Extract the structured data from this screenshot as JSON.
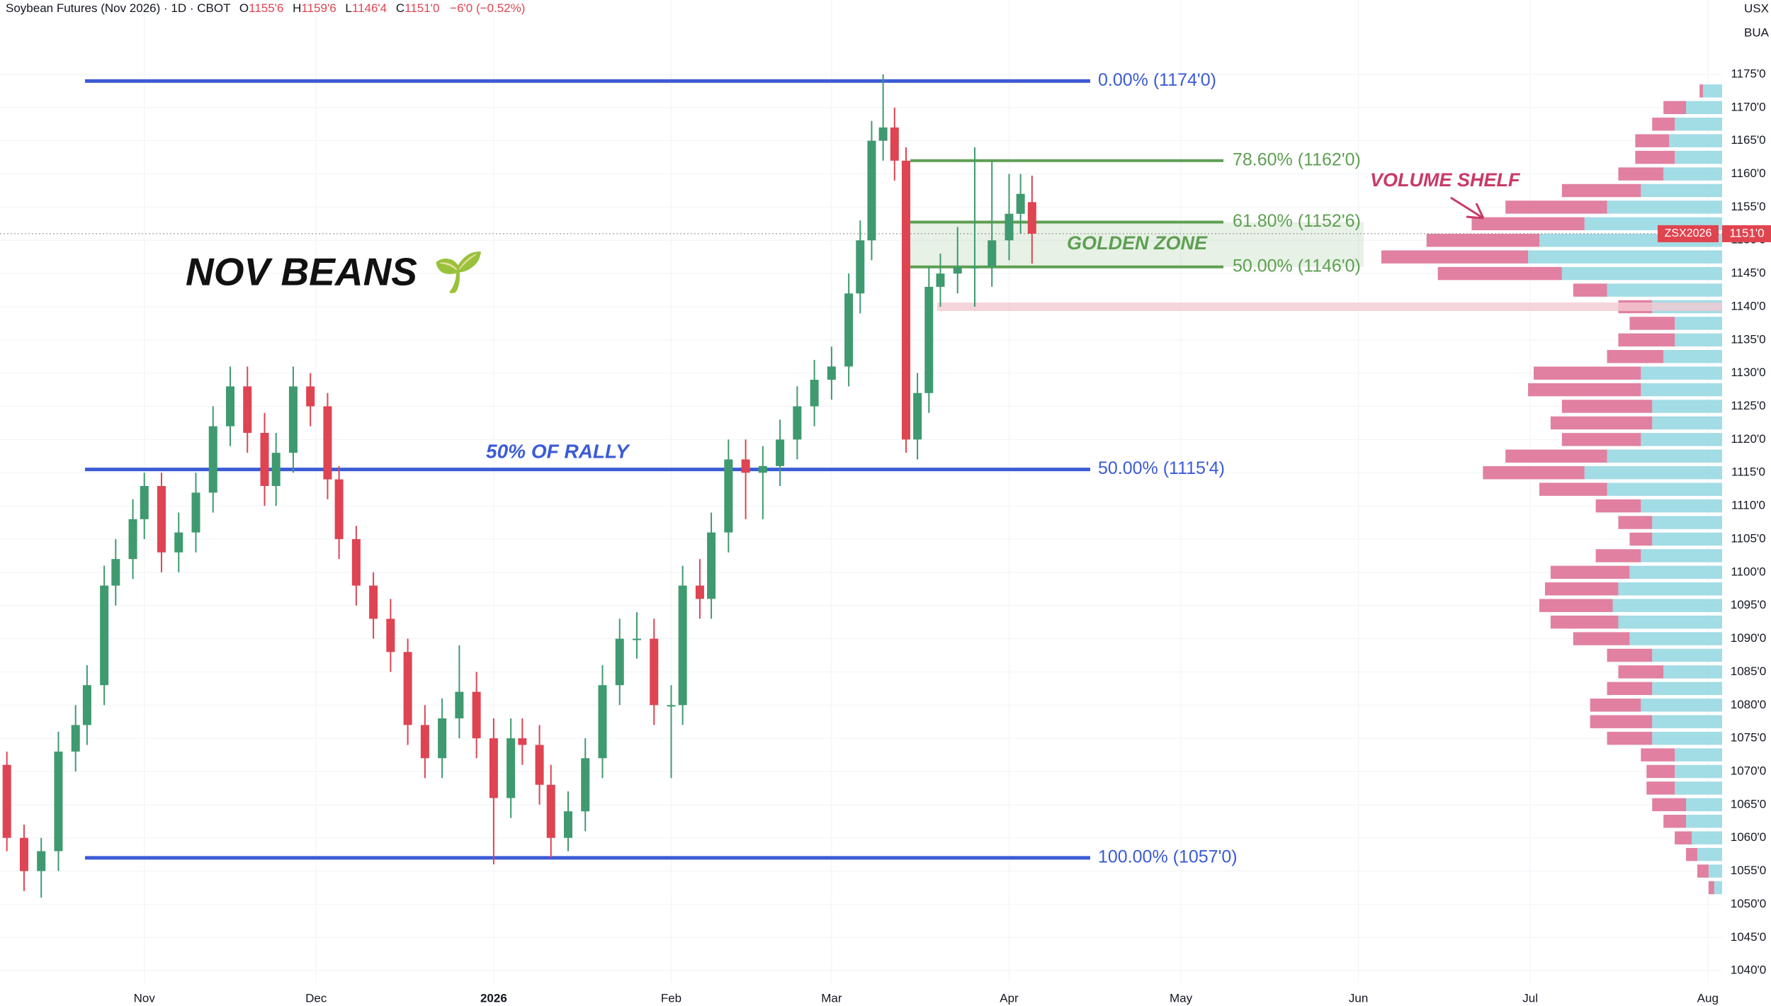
{
  "header": {
    "title": "Soybean Futures (Nov 2026) · 1D · CBOT",
    "ohlc": [
      {
        "key": "O",
        "value": "1155'6"
      },
      {
        "key": "H",
        "value": "1159'6"
      },
      {
        "key": "L",
        "value": "1146'4"
      },
      {
        "key": "C",
        "value": "1151'0"
      }
    ],
    "change": "−6'0 (−0.52%)",
    "currency": "USX",
    "unit": "BUA"
  },
  "chart_data": {
    "type": "candlestick",
    "up_color": "#3f9a6f",
    "down_color": "#de4452",
    "x": [
      7,
      10,
      13,
      16,
      19,
      21,
      24,
      26,
      29,
      31,
      34,
      37,
      40,
      43,
      46,
      49,
      52,
      54,
      57,
      60,
      63,
      65,
      68,
      71,
      74,
      77,
      80,
      83,
      86,
      89,
      92,
      95,
      97,
      100,
      102,
      105,
      108,
      111,
      114,
      117,
      120,
      123,
      125,
      128,
      130,
      133,
      136,
      139,
      142,
      145,
      148,
      151,
      154,
      156,
      158,
      160,
      162,
      164,
      166,
      168,
      170,
      173,
      176,
      179,
      182,
      184,
      186
    ],
    "open": [
      1071,
      1060,
      1055,
      1058,
      1073,
      1077,
      1083,
      1098,
      1102,
      1108,
      1113,
      1103,
      1106,
      1112,
      1122,
      1128,
      1121,
      1113,
      1118,
      1128,
      1125,
      1114,
      1105,
      1098,
      1093,
      1088,
      1077,
      1072,
      1078,
      1082,
      1075,
      1066,
      1075,
      1074,
      1068,
      1060,
      1064,
      1072,
      1083,
      1090,
      1090,
      1080,
      1080,
      1098,
      1096,
      1106,
      1117,
      1115,
      1116,
      1120,
      1125,
      1129,
      1131,
      1142,
      1150,
      1165,
      1167,
      1162,
      1120,
      1127,
      1143,
      1145,
      1146,
      1146,
      1150,
      1154,
      1155.75
    ],
    "high": [
      1073,
      1062,
      1060,
      1076,
      1080,
      1086,
      1101,
      1105,
      1111,
      1115,
      1115,
      1109,
      1115,
      1125,
      1131,
      1131,
      1124,
      1121,
      1131,
      1130,
      1127,
      1116,
      1107,
      1100,
      1096,
      1090,
      1080,
      1081,
      1089,
      1085,
      1078,
      1078,
      1078,
      1077,
      1071,
      1067,
      1075,
      1086,
      1093,
      1094,
      1093,
      1083,
      1101,
      1102,
      1109,
      1120,
      1120,
      1119,
      1123,
      1128,
      1132,
      1134,
      1145,
      1153,
      1168,
      1175,
      1170,
      1164,
      1130,
      1146,
      1148,
      1152,
      1164,
      1162,
      1160,
      1160,
      1159.75
    ],
    "low": [
      1058,
      1052,
      1051,
      1055,
      1070,
      1074,
      1080,
      1095,
      1099,
      1105,
      1100,
      1100,
      1103,
      1109,
      1119,
      1118,
      1110,
      1110,
      1115,
      1122,
      1111,
      1102,
      1095,
      1090,
      1085,
      1074,
      1069,
      1069,
      1075,
      1072,
      1056,
      1063,
      1071,
      1065,
      1057,
      1058,
      1061,
      1069,
      1080,
      1087,
      1077,
      1069,
      1077,
      1093,
      1093,
      1103,
      1108,
      1108,
      1113,
      1117,
      1122,
      1126,
      1128,
      1139,
      1147,
      1162,
      1159,
      1118,
      1117,
      1124,
      1140,
      1142,
      1140,
      1143,
      1147,
      1151,
      1146.5
    ],
    "close": [
      1060,
      1055,
      1058,
      1073,
      1077,
      1083,
      1098,
      1102,
      1108,
      1113,
      1103,
      1106,
      1112,
      1122,
      1128,
      1121,
      1113,
      1118,
      1128,
      1125,
      1114,
      1105,
      1098,
      1093,
      1088,
      1077,
      1072,
      1078,
      1082,
      1075,
      1066,
      1075,
      1074,
      1068,
      1060,
      1064,
      1072,
      1083,
      1090,
      1090,
      1080,
      1080,
      1098,
      1096,
      1106,
      1117,
      1115,
      1116,
      1120,
      1125,
      1129,
      1131,
      1142,
      1150,
      1165,
      1167,
      1162,
      1120,
      1127,
      1143,
      1145,
      1146,
      1146,
      1150,
      1154,
      1157,
      1151
    ],
    "xlim": [
      5.8,
      306.5
    ],
    "xticks": [
      {
        "value": 31,
        "label": "Nov"
      },
      {
        "value": 61,
        "label": "Dec"
      },
      {
        "value": 92,
        "label": "2026"
      },
      {
        "value": 123,
        "label": "Feb"
      },
      {
        "value": 151,
        "label": "Mar"
      },
      {
        "value": 182,
        "label": "Apr"
      },
      {
        "value": 212,
        "label": "May"
      },
      {
        "value": 243,
        "label": "Jun"
      },
      {
        "value": 273,
        "label": "Jul"
      },
      {
        "value": 304,
        "label": "Aug"
      }
    ],
    "ylim": [
      1038.2,
      1186.2
    ],
    "yticks": [
      {
        "value": 1040,
        "label": "1040'0"
      },
      {
        "value": 1045,
        "label": "1045'0"
      },
      {
        "value": 1050,
        "label": "1050'0"
      },
      {
        "value": 1055,
        "label": "1055'0"
      },
      {
        "value": 1060,
        "label": "1060'0"
      },
      {
        "value": 1065,
        "label": "1065'0"
      },
      {
        "value": 1070,
        "label": "1070'0"
      },
      {
        "value": 1075,
        "label": "1075'0"
      },
      {
        "value": 1080,
        "label": "1080'0"
      },
      {
        "value": 1085,
        "label": "1085'0"
      },
      {
        "value": 1090,
        "label": "1090'0"
      },
      {
        "value": 1095,
        "label": "1095'0"
      },
      {
        "value": 1100,
        "label": "1100'0"
      },
      {
        "value": 1105,
        "label": "1105'0"
      },
      {
        "value": 1110,
        "label": "1110'0"
      },
      {
        "value": 1115,
        "label": "1115'0"
      },
      {
        "value": 1120,
        "label": "1120'0"
      },
      {
        "value": 1125,
        "label": "1125'0"
      },
      {
        "value": 1130,
        "label": "1130'0"
      },
      {
        "value": 1135,
        "label": "1135'0"
      },
      {
        "value": 1140,
        "label": "1140'0"
      },
      {
        "value": 1145,
        "label": "1145'0"
      },
      {
        "value": 1150,
        "label": "1150'0"
      },
      {
        "value": 1155,
        "label": "1155'0"
      },
      {
        "value": 1160,
        "label": "1160'0"
      },
      {
        "value": 1165,
        "label": "1165'0"
      },
      {
        "value": 1170,
        "label": "1170'0"
      },
      {
        "value": 1175,
        "label": "1175'0"
      }
    ],
    "grid": true,
    "fib_levels": [
      {
        "label": "0.00% (1174'0)",
        "value": 1174
      },
      {
        "label": "50.00% (1115'4)",
        "value": 1115.5
      },
      {
        "label": "100.00% (1057'0)",
        "value": 1057
      }
    ],
    "fib_color": "#3b5bd6",
    "zone_levels": [
      {
        "label": "78.60% (1162'0)",
        "value": 1162
      },
      {
        "label": "61.80% (1152'6)",
        "value": 1152.75
      },
      {
        "label": "50.00% (1146'0)",
        "value": 1146
      }
    ],
    "zone_color": "#5e9f52",
    "support_band": {
      "value": 1140,
      "color": "#f4c9d2"
    },
    "price_line": {
      "value": 1151,
      "label": "1151'0",
      "symbol": "ZSX2026",
      "color": "#e0444f"
    },
    "annotations": {
      "title": "NOV BEANS 🌱",
      "rally": "50% OF RALLY",
      "zone": "GOLDEN ZONE",
      "shelf": "VOLUME SHELF"
    },
    "volume_profile": {
      "buy_color": "#92d6e1",
      "sell_color": "#dc6a8f",
      "prices": [
        1172.5,
        1170,
        1167.5,
        1165,
        1162.5,
        1160,
        1157.5,
        1155,
        1152.5,
        1150,
        1147.5,
        1145,
        1142.5,
        1140,
        1137.5,
        1135,
        1132.5,
        1130,
        1127.5,
        1125,
        1122.5,
        1120,
        1117.5,
        1115,
        1112.5,
        1110,
        1107.5,
        1105,
        1102.5,
        1100,
        1097.5,
        1095,
        1092.5,
        1090,
        1087.5,
        1085,
        1082.5,
        1080,
        1077.5,
        1075,
        1072.5,
        1070,
        1067.5,
        1065,
        1062.5,
        1060,
        1057.5,
        1055,
        1052.5
      ],
      "buy": [
        17,
        32,
        42,
        47,
        42,
        52,
        72,
        102,
        122,
        162,
        172,
        142,
        102,
        62,
        42,
        42,
        52,
        72,
        72,
        62,
        62,
        72,
        102,
        122,
        102,
        72,
        62,
        62,
        72,
        82,
        92,
        97,
        92,
        82,
        62,
        52,
        62,
        72,
        62,
        62,
        42,
        42,
        42,
        32,
        32,
        27,
        22,
        12,
        7
      ],
      "sell": [
        3,
        20,
        20,
        30,
        35,
        40,
        70,
        90,
        100,
        100,
        130,
        110,
        30,
        30,
        40,
        50,
        50,
        95,
        100,
        80,
        90,
        70,
        90,
        90,
        60,
        40,
        30,
        20,
        40,
        70,
        65,
        65,
        60,
        50,
        40,
        40,
        40,
        45,
        55,
        40,
        30,
        25,
        25,
        30,
        20,
        15,
        10,
        10,
        5
      ]
    }
  }
}
